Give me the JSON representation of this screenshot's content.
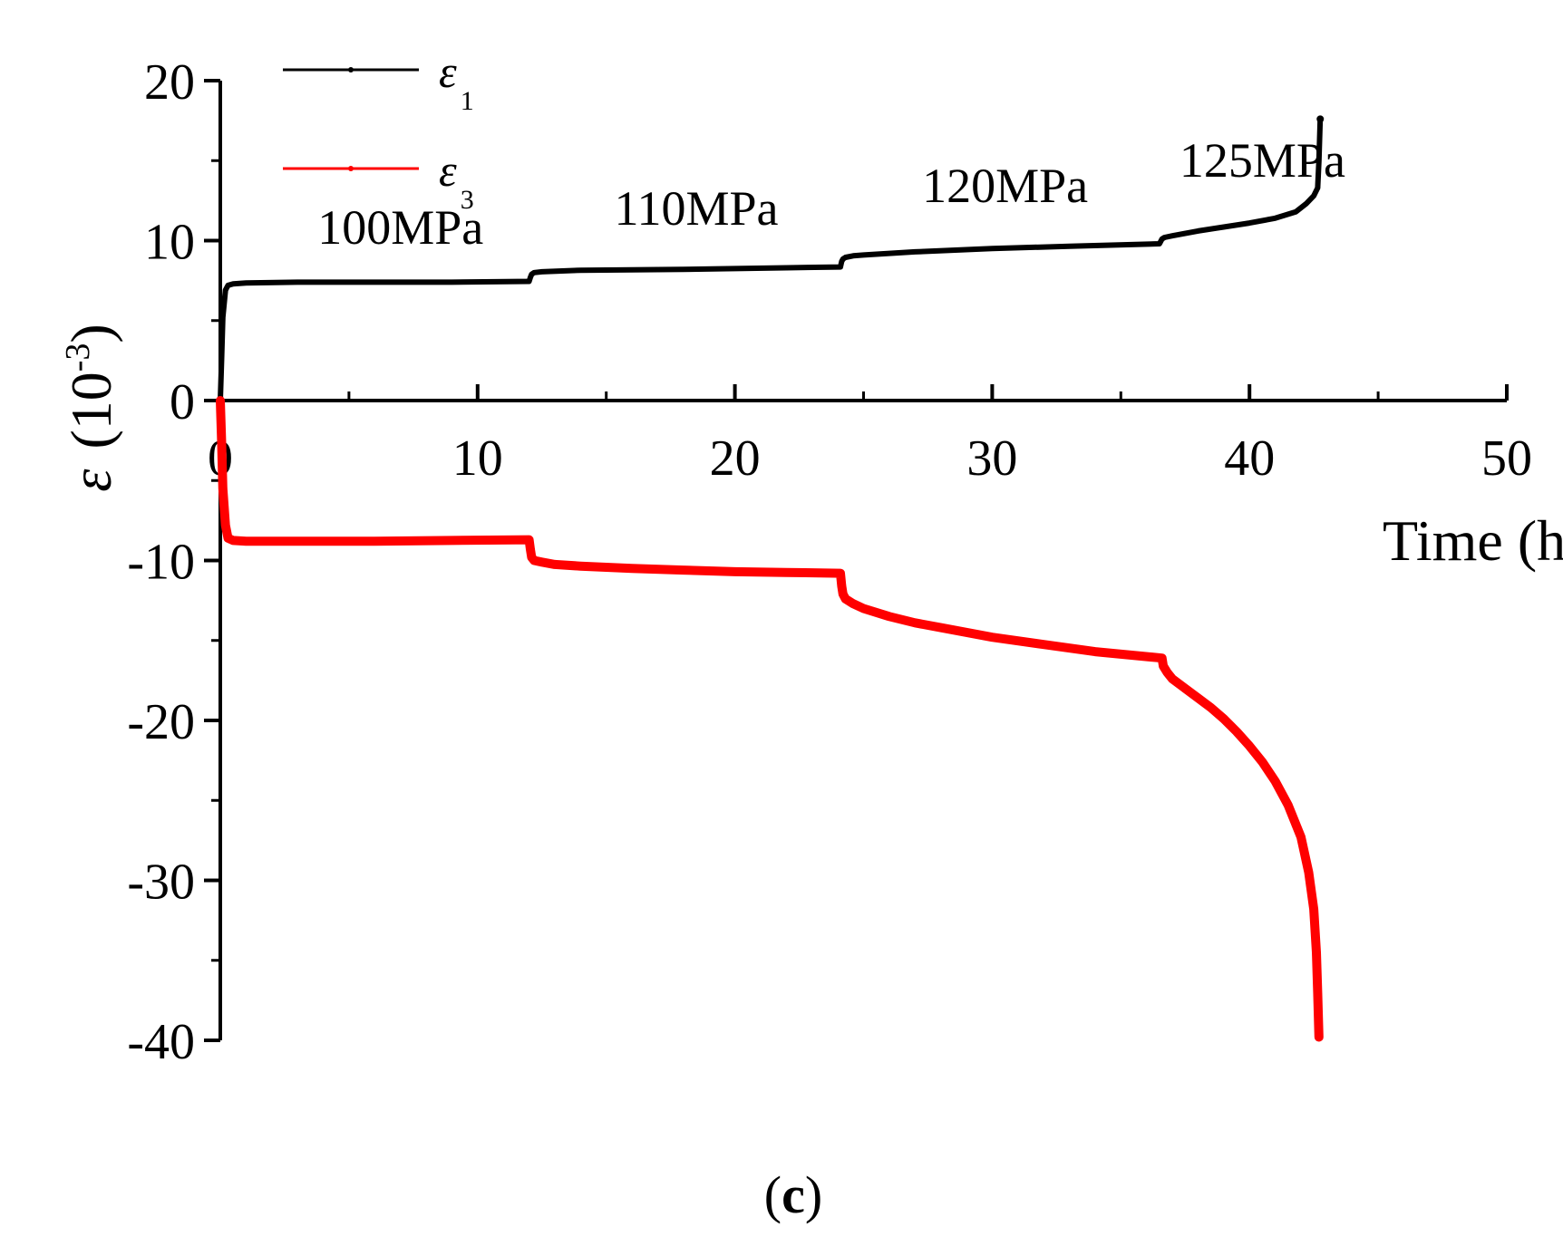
{
  "chart_data": {
    "type": "line",
    "panel_label": {
      "open": "(",
      "letter": "c",
      "close": ")"
    },
    "xlabel": "Time (h)",
    "ylabel": {
      "symbol": "ε",
      "unit_open": "(10",
      "unit_exp": "-3",
      "unit_close": ")"
    },
    "xlim": [
      0,
      50
    ],
    "ylim": [
      -40,
      20
    ],
    "xticks": [
      0,
      10,
      20,
      30,
      40,
      50
    ],
    "xticklabels": [
      "0",
      "10",
      "20",
      "30",
      "40",
      "50"
    ],
    "yticks": [
      20,
      10,
      0,
      -10,
      -20,
      -30,
      -40
    ],
    "yticklabels": [
      "20",
      "10",
      "0",
      "-10",
      "-20",
      "-30",
      "-40"
    ],
    "x_minor_step": 5,
    "y_minor_step": 5,
    "legend": [
      {
        "symbol": "ε",
        "subscript": "1",
        "color": "#000000"
      },
      {
        "symbol": "ε",
        "subscript": "3",
        "color": "#ff0000"
      }
    ],
    "annotations": [
      {
        "text": "100MPa",
        "x": 7.0,
        "y": 9.8
      },
      {
        "text": "110MPa",
        "x": 18.5,
        "y": 11.0
      },
      {
        "text": "120MPa",
        "x": 30.5,
        "y": 12.4
      },
      {
        "text": "125MPa",
        "x": 40.5,
        "y": 14.0
      }
    ],
    "series": [
      {
        "name": "ε1",
        "color": "#000000",
        "x": [
          0,
          0.05,
          0.1,
          0.2,
          0.3,
          0.5,
          1,
          3,
          6,
          9,
          12.0,
          12.05,
          12.1,
          12.2,
          12.5,
          14,
          18,
          22,
          24.1,
          24.15,
          24.2,
          24.3,
          24.6,
          25,
          27,
          30,
          33,
          36.5,
          36.6,
          36.7,
          37,
          38,
          39,
          40,
          41,
          41.8,
          42.2,
          42.5,
          42.65,
          42.7,
          42.75
        ],
        "y": [
          0,
          2.5,
          5.2,
          6.9,
          7.2,
          7.3,
          7.35,
          7.4,
          7.4,
          7.4,
          7.45,
          7.7,
          7.9,
          8.0,
          8.05,
          8.15,
          8.2,
          8.3,
          8.35,
          8.7,
          8.85,
          8.95,
          9.05,
          9.1,
          9.3,
          9.5,
          9.65,
          9.8,
          10.1,
          10.2,
          10.3,
          10.6,
          10.85,
          11.1,
          11.4,
          11.8,
          12.3,
          12.8,
          13.3,
          15.0,
          17.6
        ]
      },
      {
        "name": "ε3",
        "color": "#ff0000",
        "x": [
          0,
          0.05,
          0.1,
          0.2,
          0.3,
          0.5,
          1,
          3,
          6,
          9,
          12.0,
          12.05,
          12.1,
          12.2,
          12.5,
          13,
          14,
          16,
          18,
          20,
          22,
          24.1,
          24.15,
          24.2,
          24.3,
          24.6,
          25,
          26,
          27,
          28,
          30,
          32,
          34,
          36.6,
          36.65,
          36.8,
          37,
          37.5,
          38,
          38.5,
          39,
          39.5,
          40,
          40.5,
          41,
          41.5,
          42,
          42.3,
          42.5,
          42.6,
          42.65,
          42.7
        ],
        "y": [
          0,
          -2.5,
          -5.5,
          -7.8,
          -8.6,
          -8.75,
          -8.8,
          -8.8,
          -8.8,
          -8.75,
          -8.7,
          -9.3,
          -9.8,
          -10.0,
          -10.1,
          -10.25,
          -10.35,
          -10.5,
          -10.6,
          -10.7,
          -10.75,
          -10.8,
          -11.6,
          -12.1,
          -12.4,
          -12.7,
          -13.0,
          -13.5,
          -13.9,
          -14.2,
          -14.8,
          -15.25,
          -15.7,
          -16.1,
          -16.6,
          -17.0,
          -17.4,
          -18.0,
          -18.6,
          -19.2,
          -19.9,
          -20.7,
          -21.6,
          -22.6,
          -23.8,
          -25.3,
          -27.3,
          -29.5,
          -31.8,
          -34.5,
          -37.0,
          -39.8
        ]
      }
    ]
  }
}
